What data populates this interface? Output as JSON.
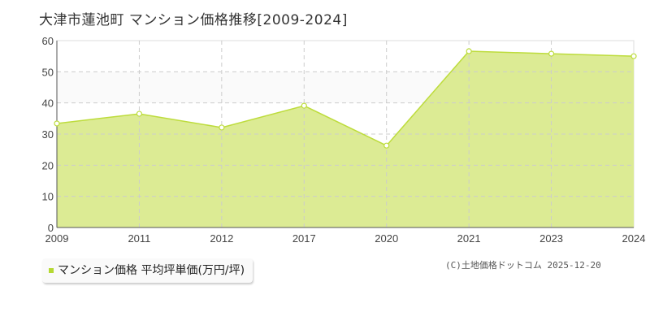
{
  "title": "大津市蓮池町 マンション価格推移[2009-2024]",
  "legend": "マンション価格 平均坪単価(万円/坪)",
  "credit": "(C)土地価格ドットコム 2025-12-20",
  "colors": {
    "fill": "#dceb94",
    "line": "#bddc3c",
    "marker": "#ffffff"
  },
  "chart_data": {
    "type": "area",
    "title": "大津市蓮池町 マンション価格推移[2009-2024]",
    "categories": [
      "2009",
      "2011",
      "2012",
      "2017",
      "2020",
      "2021",
      "2023",
      "2024"
    ],
    "series": [
      {
        "name": "マンション価格 平均坪単価(万円/坪)",
        "values": [
          33.4,
          36.5,
          32.1,
          39.1,
          26.3,
          56.6,
          55.8,
          55.0
        ]
      }
    ],
    "ylim": [
      0,
      60
    ],
    "yticks": [
      0,
      10,
      20,
      30,
      40,
      50,
      60
    ],
    "grid": true,
    "legend": "bottom-left"
  }
}
